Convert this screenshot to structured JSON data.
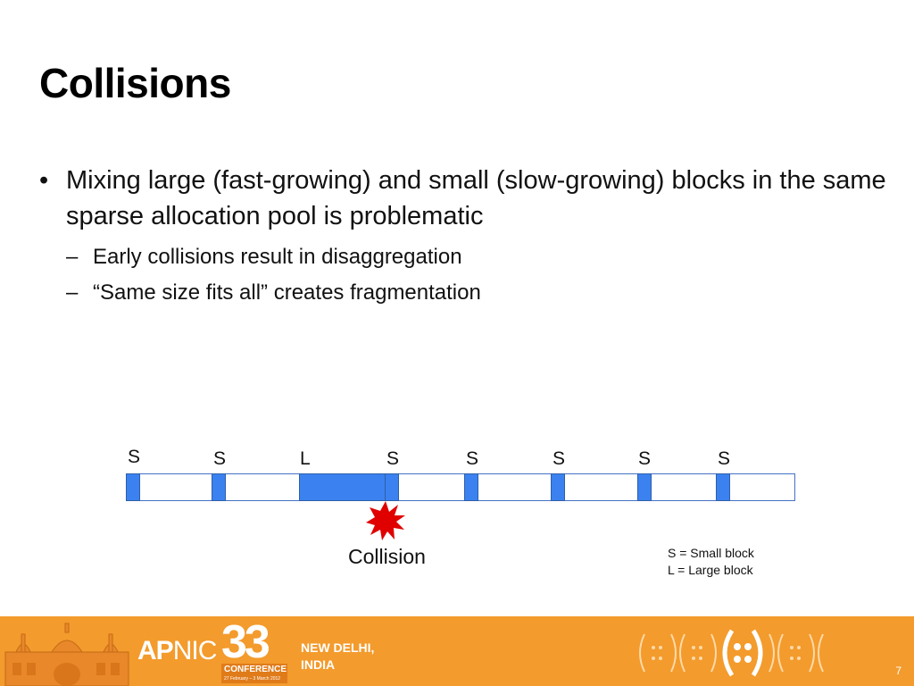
{
  "slide": {
    "title": "Collisions",
    "bullets": [
      {
        "marker": "•",
        "text": "Mixing large (fast-growing) and small (slow-growing) blocks in the same sparse allocation pool is problematic",
        "subs": [
          {
            "marker": "–",
            "text": "Early collisions result in disaggregation"
          },
          {
            "marker": "–",
            "text": "“Same size fits all” creates fragmentation"
          }
        ]
      }
    ]
  },
  "diagram": {
    "labels": [
      "S",
      "S",
      "L",
      "S",
      "S",
      "S",
      "S",
      "S"
    ],
    "collision_label": "Collision",
    "legend": [
      "S = Small block",
      "L = Large block"
    ],
    "colors": {
      "block_fill": "#3b82f0",
      "block_border": "#2e5fa8",
      "collision_star": "#e00000"
    }
  },
  "footer": {
    "brand_bold": "AP",
    "brand_light": "NIC",
    "conference_number": "33",
    "conference_word": "CONFERENCE",
    "conference_dates": "27 February – 3 March 2012",
    "city_line1": "NEW DELHI,",
    "city_line2": "INDIA",
    "page_number": "7",
    "background_color": "#f39b2c"
  }
}
